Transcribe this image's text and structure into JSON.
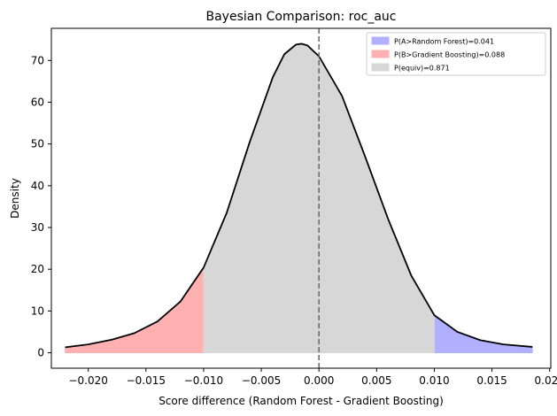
{
  "chart_data": {
    "type": "area",
    "title": "Bayesian Comparison: roc_auc",
    "xlabel": "Score difference (Random Forest - Gradient Boosting)",
    "ylabel": "Density",
    "xlim": [
      -0.0232,
      0.0201
    ],
    "ylim": [
      -3.7,
      77.7
    ],
    "x_ticks": [
      -0.02,
      -0.015,
      -0.01,
      -0.005,
      0.0,
      0.005,
      0.01,
      0.015,
      0.02
    ],
    "x_tick_labels": [
      "−0.020",
      "−0.015",
      "−0.010",
      "−0.005",
      "0.000",
      "0.005",
      "0.010",
      "0.015",
      "0.020"
    ],
    "y_ticks": [
      0,
      10,
      20,
      30,
      40,
      50,
      60,
      70
    ],
    "y_tick_labels": [
      "0",
      "10",
      "20",
      "30",
      "40",
      "50",
      "60",
      "70"
    ],
    "curve": {
      "color": "#000000",
      "x": [
        -0.022,
        -0.02,
        -0.018,
        -0.016,
        -0.014,
        -0.012,
        -0.01,
        -0.008,
        -0.006,
        -0.004,
        -0.003,
        -0.002,
        -0.0015,
        -0.001,
        0.0,
        0.002,
        0.004,
        0.006,
        0.008,
        0.01,
        0.012,
        0.014,
        0.016,
        0.0185
      ],
      "y": [
        1.3,
        2.0,
        3.1,
        4.7,
        7.5,
        12.3,
        20.4,
        33.5,
        50.5,
        66.0,
        71.5,
        73.8,
        74.0,
        73.6,
        71.0,
        61.5,
        47.0,
        32.0,
        18.5,
        9.0,
        5.0,
        3.0,
        2.0,
        1.4
      ]
    },
    "rope": [
      -0.01,
      0.01
    ],
    "reference_line": {
      "x": 0.0,
      "style": "dashed",
      "color": "#666666"
    },
    "series": [
      {
        "name": "P(A>Random Forest)=0.041",
        "region": "right",
        "color": "#b0b0ff"
      },
      {
        "name": "P(B>Gradient Boosting)=0.088",
        "region": "left",
        "color": "#ffb0b0"
      },
      {
        "name": "P(equiv)=0.871",
        "region": "middle",
        "color": "#d7d7d7"
      }
    ],
    "legend_position": "top-right",
    "grid": false
  }
}
